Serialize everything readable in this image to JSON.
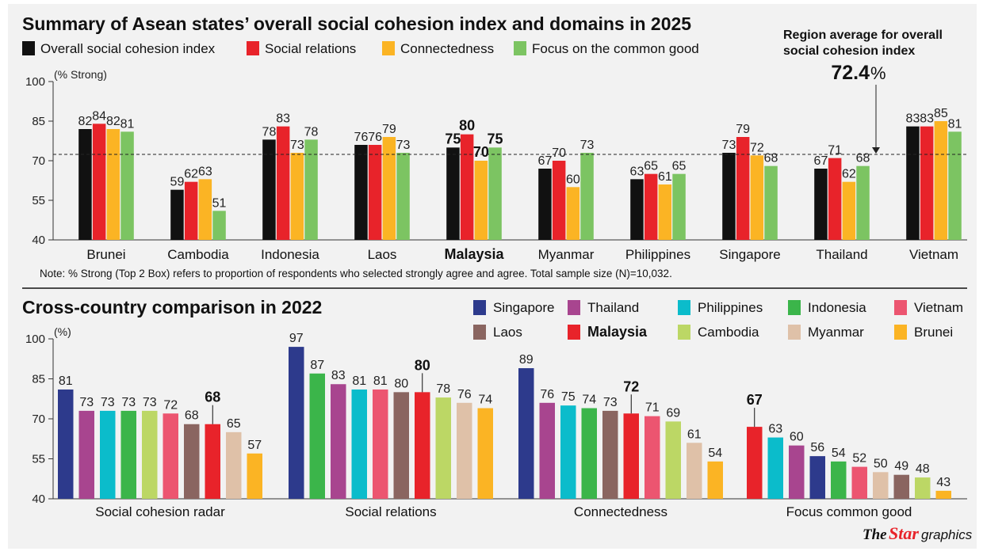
{
  "chart_data": [
    {
      "type": "bar",
      "title": "Summary of Asean states’ overall social cohesion index and domains in 2025",
      "unit_label": "(% Strong)",
      "ylim": [
        40,
        100
      ],
      "yticks": [
        "100",
        "85",
        "70",
        "55",
        "40"
      ],
      "legend_placement": "top-left",
      "highlight_category": "Malaysia",
      "categories": [
        "Brunei",
        "Cambodia",
        "Indonesia",
        "Laos",
        "Malaysia",
        "Myanmar",
        "Philippines",
        "Singapore",
        "Thailand",
        "Vietnam"
      ],
      "series": [
        {
          "name": "Overall social cohesion index",
          "color": "#111111",
          "values": [
            82,
            59,
            78,
            76,
            75,
            67,
            63,
            73,
            67,
            83
          ]
        },
        {
          "name": "Social relations",
          "color": "#e8232a",
          "values": [
            84,
            62,
            83,
            76,
            80,
            70,
            65,
            79,
            71,
            83
          ]
        },
        {
          "name": "Connectedness",
          "color": "#fbb424",
          "values": [
            82,
            63,
            73,
            79,
            70,
            60,
            61,
            72,
            62,
            85
          ]
        },
        {
          "name": "Focus on the common good",
          "color": "#7cc462",
          "values": [
            81,
            51,
            78,
            73,
            75,
            73,
            65,
            68,
            68,
            81
          ]
        }
      ],
      "reference_line": {
        "value": 72.4,
        "label_line1": "Region average for overall",
        "label_line2": "social cohesion index",
        "value_text": "72.4",
        "value_suffix": "%"
      },
      "note": "Note: % Strong (Top 2 Box) refers to proportion of respondents who selected strongly agree and agree. Total sample size (N)=10,032."
    },
    {
      "type": "bar",
      "title": "Cross-country comparison in 2022",
      "unit_label": "(%)",
      "ylim": [
        40,
        100
      ],
      "yticks": [
        "100",
        "85",
        "70",
        "55",
        "40"
      ],
      "legend_placement": "top-right",
      "highlight_country": "Malaysia",
      "legend": [
        {
          "name": "Singapore",
          "color": "#2d3a8c"
        },
        {
          "name": "Thailand",
          "color": "#a8458f"
        },
        {
          "name": "Philippines",
          "color": "#0bbccb"
        },
        {
          "name": "Indonesia",
          "color": "#3bb54a"
        },
        {
          "name": "Vietnam",
          "color": "#ec5570"
        },
        {
          "name": "Laos",
          "color": "#8a6560"
        },
        {
          "name": "Malaysia",
          "color": "#e8232a"
        },
        {
          "name": "Cambodia",
          "color": "#bcd765"
        },
        {
          "name": "Myanmar",
          "color": "#dfc1a8"
        },
        {
          "name": "Brunei",
          "color": "#fbb424"
        }
      ],
      "groups": [
        {
          "label": "Social cohesion radar",
          "bars": [
            {
              "country": "Singapore",
              "value": 81
            },
            {
              "country": "Thailand",
              "value": 73
            },
            {
              "country": "Philippines",
              "value": 73
            },
            {
              "country": "Indonesia",
              "value": 73
            },
            {
              "country": "Cambodia",
              "value": 73
            },
            {
              "country": "Vietnam",
              "value": 72
            },
            {
              "country": "Laos",
              "value": 68
            },
            {
              "country": "Malaysia",
              "value": 68
            },
            {
              "country": "Myanmar",
              "value": 65
            },
            {
              "country": "Brunei",
              "value": 57
            }
          ]
        },
        {
          "label": "Social relations",
          "bars": [
            {
              "country": "Singapore",
              "value": 97
            },
            {
              "country": "Indonesia",
              "value": 87
            },
            {
              "country": "Thailand",
              "value": 83
            },
            {
              "country": "Philippines",
              "value": 81
            },
            {
              "country": "Vietnam",
              "value": 81
            },
            {
              "country": "Laos",
              "value": 80
            },
            {
              "country": "Malaysia",
              "value": 80
            },
            {
              "country": "Cambodia",
              "value": 78
            },
            {
              "country": "Myanmar",
              "value": 76
            },
            {
              "country": "Brunei",
              "value": 74
            }
          ]
        },
        {
          "label": "Connectedness",
          "bars": [
            {
              "country": "Singapore",
              "value": 89
            },
            {
              "country": "Thailand",
              "value": 76
            },
            {
              "country": "Philippines",
              "value": 75
            },
            {
              "country": "Indonesia",
              "value": 74
            },
            {
              "country": "Laos",
              "value": 73
            },
            {
              "country": "Malaysia",
              "value": 72
            },
            {
              "country": "Vietnam",
              "value": 71
            },
            {
              "country": "Cambodia",
              "value": 69
            },
            {
              "country": "Myanmar",
              "value": 61
            },
            {
              "country": "Brunei",
              "value": 54
            }
          ]
        },
        {
          "label": "Focus common good",
          "bars": [
            {
              "country": "Malaysia",
              "value": 67
            },
            {
              "country": "Philippines",
              "value": 63
            },
            {
              "country": "Thailand",
              "value": 60
            },
            {
              "country": "Singapore",
              "value": 56
            },
            {
              "country": "Indonesia",
              "value": 54
            },
            {
              "country": "Vietnam",
              "value": 52
            },
            {
              "country": "Myanmar",
              "value": 50
            },
            {
              "country": "Laos",
              "value": 49
            },
            {
              "country": "Cambodia",
              "value": 48
            },
            {
              "country": "Brunei",
              "value": 43
            }
          ]
        }
      ]
    }
  ],
  "credit": {
    "the": "The",
    "star": "Star",
    "graphics": "graphics"
  }
}
